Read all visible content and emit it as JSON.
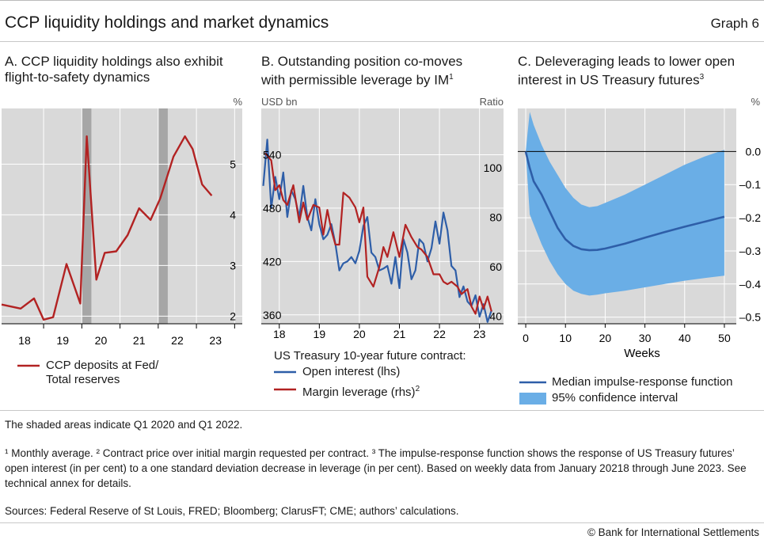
{
  "header": {
    "title": "CCP liquidity holdings and market dynamics",
    "graph_number": "Graph 6"
  },
  "panels": {
    "a": {
      "title_line1": "A. CCP liquidity holdings also exhibit",
      "title_line2": "flight-to-safety dynamics",
      "unit": "%",
      "legend": [
        "CCP deposits at Fed/",
        "Total reserves"
      ]
    },
    "b": {
      "title_line1": "B. Outstanding position co-moves",
      "title_line2": "with permissible leverage by IM",
      "title_sup": "1",
      "unit_left": "USD bn",
      "unit_right": "Ratio",
      "legend_heading": "US Treasury 10-year future contract:",
      "legend_open": "Open interest (lhs)",
      "legend_margin": "Margin leverage (rhs)",
      "legend_margin_sup": "2"
    },
    "c": {
      "title_line1": "C. Deleveraging leads to lower open",
      "title_line2": "interest in US Treasury futures",
      "title_sup": "3",
      "unit": "%",
      "xlabel": "Weeks",
      "legend_median": "Median impulse-response function",
      "legend_ci": "95% confidence interval"
    }
  },
  "notes": {
    "shaded": "The shaded areas indicate Q1 2020 and Q1 2022.",
    "footnotes": "¹ Monthly average. ² Contract price over initial margin requested per contract. ³ The impulse-response function shows the response of US Treasury futures’ open interest (in per cent) to a one standard deviation decrease in leverage (in per cent). Based on weekly data from January 20218 through June 2023. See technical annex for details.",
    "sources": "Sources: Federal Reserve of St Louis, FRED; Bloomberg; ClarusFT; CME; authors’ calculations.",
    "copyright": "© Bank for International Settlements"
  },
  "colors": {
    "red": "#b22222",
    "blue": "#2e5ea8",
    "ci_fill": "#6aaee6",
    "panel_bg": "#d9d9d9",
    "shade": "#a6a6a6"
  },
  "chart_data": [
    {
      "type": "line",
      "title": "A. CCP liquidity holdings also exhibit flight-to-safety dynamics",
      "ylabel": "%",
      "ylim": [
        1.85,
        6.1
      ],
      "yticks": [
        2,
        3,
        4,
        5
      ],
      "xlim": [
        2017.9,
        2024.2
      ],
      "xtick_labels": [
        "18",
        "19",
        "20",
        "21",
        "22",
        "23"
      ],
      "shaded_periods": [
        [
          2020.0,
          2020.25
        ],
        [
          2022.0,
          2022.25
        ]
      ],
      "grid": true,
      "series": [
        {
          "name": "CCP deposits at Fed/ Total reserves",
          "color": "#b22222",
          "x": [
            2017.9,
            2018.4,
            2018.75,
            2019.0,
            2019.25,
            2019.6,
            2019.96,
            2020.13,
            2020.38,
            2020.6,
            2020.9,
            2021.2,
            2021.5,
            2021.8,
            2022.05,
            2022.4,
            2022.7,
            2022.9,
            2023.15,
            2023.4
          ],
          "y": [
            2.23,
            2.15,
            2.35,
            1.93,
            1.98,
            3.03,
            2.25,
            5.55,
            2.72,
            3.25,
            3.28,
            3.6,
            4.13,
            3.9,
            4.32,
            5.15,
            5.55,
            5.3,
            4.6,
            4.38
          ]
        }
      ]
    },
    {
      "type": "line",
      "title": "B. Outstanding position co-moves with permissible leverage by IM",
      "ylim_left": [
        350,
        592
      ],
      "yticks_left": [
        360,
        420,
        480,
        540
      ],
      "ylabel_left": "USD bn",
      "ylim_right": [
        37,
        124
      ],
      "yticks_right": [
        40,
        60,
        80,
        100
      ],
      "ylabel_right": "Ratio",
      "xlim": [
        2017.55,
        2023.6
      ],
      "xtick_labels": [
        "18",
        "19",
        "20",
        "21",
        "22",
        "23"
      ],
      "grid": true,
      "series": [
        {
          "name": "Open interest (lhs)",
          "axis": "left",
          "color": "#2e5ea8",
          "x": [
            2017.6,
            2017.7,
            2017.8,
            2017.9,
            2018.0,
            2018.1,
            2018.2,
            2018.3,
            2018.4,
            2018.5,
            2018.6,
            2018.7,
            2018.8,
            2018.9,
            2019.0,
            2019.1,
            2019.2,
            2019.3,
            2019.4,
            2019.5,
            2019.6,
            2019.7,
            2019.8,
            2019.9,
            2020.0,
            2020.1,
            2020.2,
            2020.3,
            2020.4,
            2020.5,
            2020.6,
            2020.7,
            2020.8,
            2020.9,
            2021.0,
            2021.1,
            2021.2,
            2021.3,
            2021.4,
            2021.5,
            2021.6,
            2021.7,
            2021.8,
            2021.9,
            2022.0,
            2022.1,
            2022.2,
            2022.3,
            2022.4,
            2022.5,
            2022.6,
            2022.7,
            2022.8,
            2022.9,
            2023.0,
            2023.1,
            2023.2,
            2023.3
          ],
          "y": [
            505,
            557,
            480,
            515,
            490,
            520,
            470,
            500,
            490,
            470,
            505,
            470,
            455,
            490,
            462,
            445,
            450,
            462,
            440,
            410,
            418,
            420,
            425,
            418,
            432,
            460,
            470,
            430,
            425,
            410,
            412,
            415,
            395,
            425,
            390,
            445,
            430,
            400,
            410,
            445,
            440,
            420,
            435,
            465,
            440,
            475,
            455,
            415,
            410,
            380,
            392,
            375,
            370,
            382,
            358,
            372,
            352,
            365
          ]
        },
        {
          "name": "Margin leverage (rhs)",
          "axis": "right",
          "color": "#b22222",
          "x": [
            2017.65,
            2017.8,
            2017.9,
            2018.0,
            2018.1,
            2018.2,
            2018.35,
            2018.5,
            2018.6,
            2018.7,
            2018.85,
            2019.0,
            2019.1,
            2019.2,
            2019.3,
            2019.4,
            2019.5,
            2019.6,
            2019.75,
            2019.9,
            2020.0,
            2020.1,
            2020.2,
            2020.35,
            2020.5,
            2020.6,
            2020.7,
            2020.85,
            2021.0,
            2021.15,
            2021.3,
            2021.45,
            2021.55,
            2021.7,
            2021.85,
            2022.0,
            2022.1,
            2022.2,
            2022.3,
            2022.45,
            2022.55,
            2022.7,
            2022.8,
            2022.9,
            2023.0,
            2023.1,
            2023.2,
            2023.3
          ],
          "y": [
            106,
            103,
            91,
            93,
            87,
            85,
            93,
            78,
            86,
            79,
            85,
            84,
            73,
            83,
            75,
            69,
            69,
            90,
            88,
            84,
            78,
            84,
            56,
            52,
            60,
            68,
            64,
            74,
            64,
            77,
            72,
            68,
            67,
            64,
            57,
            57,
            54,
            53,
            54,
            52,
            49,
            51,
            44,
            41,
            48,
            43,
            48,
            42
          ]
        }
      ]
    },
    {
      "type": "area",
      "title": "C. Deleveraging leads to lower open interest in US Treasury futures",
      "xlabel": "Weeks",
      "ylabel": "%",
      "xlim": [
        -2,
        53
      ],
      "xticks": [
        0,
        10,
        20,
        30,
        40,
        50
      ],
      "ylim": [
        -0.52,
        0.13
      ],
      "yticks": [
        0.0,
        -0.1,
        -0.2,
        -0.3,
        -0.4,
        -0.5
      ],
      "ytick_labels": [
        "0.0",
        "–0.1",
        "–0.2",
        "–0.3",
        "–0.4",
        "–0.5"
      ],
      "grid": true,
      "series": [
        {
          "name": "Median impulse-response function",
          "color": "#2e5ea8",
          "x": [
            0,
            1,
            2,
            4,
            6,
            8,
            10,
            12,
            14,
            16,
            18,
            20,
            25,
            30,
            35,
            40,
            45,
            50
          ],
          "y": [
            0.0,
            -0.05,
            -0.09,
            -0.13,
            -0.18,
            -0.23,
            -0.265,
            -0.285,
            -0.295,
            -0.298,
            -0.297,
            -0.293,
            -0.278,
            -0.26,
            -0.243,
            -0.227,
            -0.212,
            -0.197
          ]
        },
        {
          "name": "95% confidence interval",
          "color": "#6aaee6",
          "x": [
            0,
            1,
            2,
            4,
            6,
            8,
            10,
            12,
            14,
            16,
            18,
            20,
            25,
            30,
            35,
            40,
            45,
            50
          ],
          "upper": [
            0.0,
            0.12,
            0.08,
            0.02,
            -0.03,
            -0.07,
            -0.11,
            -0.14,
            -0.16,
            -0.168,
            -0.165,
            -0.155,
            -0.13,
            -0.1,
            -0.07,
            -0.04,
            -0.015,
            0.005
          ],
          "lower": [
            0.0,
            -0.19,
            -0.22,
            -0.28,
            -0.33,
            -0.37,
            -0.4,
            -0.42,
            -0.43,
            -0.435,
            -0.432,
            -0.428,
            -0.42,
            -0.41,
            -0.4,
            -0.39,
            -0.382,
            -0.375
          ]
        }
      ]
    }
  ]
}
